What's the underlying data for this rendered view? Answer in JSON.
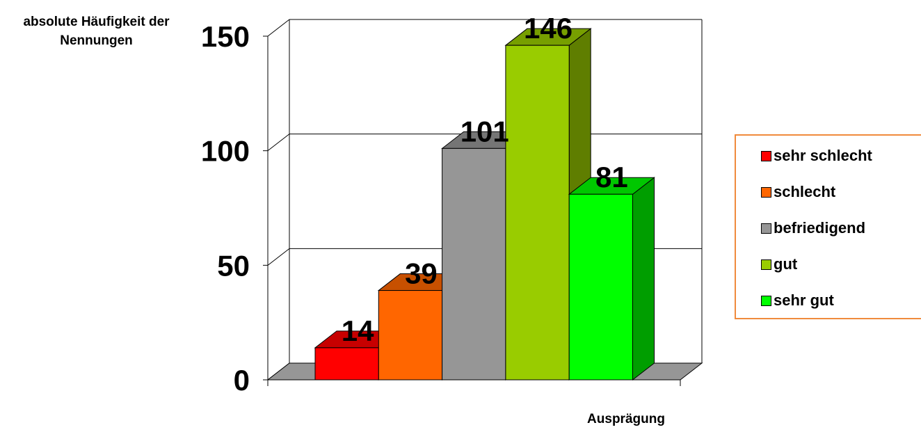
{
  "chart_data": {
    "type": "bar",
    "categories": [
      "sehr schlecht",
      "schlecht",
      "befriedigend",
      "gut",
      "sehr gut"
    ],
    "values": [
      14,
      39,
      101,
      146,
      81
    ],
    "colors": [
      "#ff0000",
      "#ff6600",
      "#969696",
      "#99cc00",
      "#00ff00"
    ],
    "ylabel": "absolute Häufigkeit der Nennungen",
    "xlabel": "Ausprägung",
    "ylim": [
      0,
      150
    ],
    "yticks": [
      "0",
      "50",
      "100",
      "150"
    ],
    "data_labels": [
      "14",
      "39",
      "101",
      "146",
      "81"
    ],
    "legend": "right",
    "grid": true,
    "style": "3d"
  },
  "legend_items": [
    {
      "label": "sehr schlecht",
      "color": "#ff0000"
    },
    {
      "label": "schlecht",
      "color": "#ff6600"
    },
    {
      "label": "befriedigend",
      "color": "#969696"
    },
    {
      "label": "gut",
      "color": "#99cc00"
    },
    {
      "label": "sehr gut",
      "color": "#00ff00"
    }
  ]
}
